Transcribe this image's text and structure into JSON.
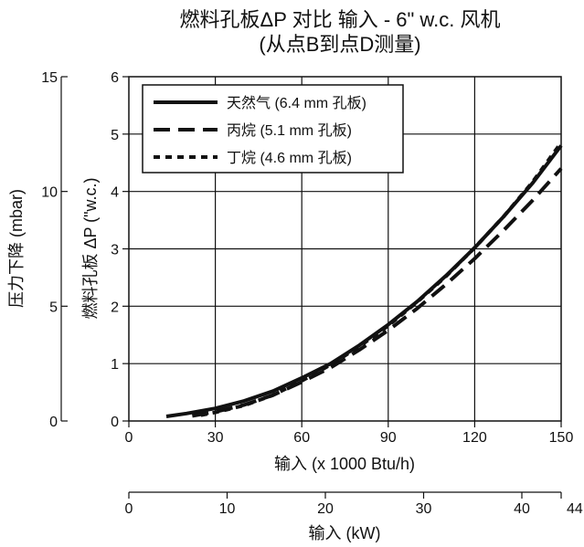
{
  "chart_data": {
    "type": "line",
    "title": [
      "燃料孔板ΔP 对比 输入 - 6\" w.c. 风机",
      "(从点B到点D测量)"
    ],
    "xlabel_primary": "输入 (x 1000 Btu/h)",
    "xlabel_secondary": "输入 (kW)",
    "ylabel_primary": "燃料孔板 ΔP (\"w.c.)",
    "ylabel_secondary": "压力下降 (mbar)",
    "xlim_primary": [
      0,
      150
    ],
    "ylim_primary": [
      0,
      6
    ],
    "xticks_primary": [
      "0",
      "30",
      "60",
      "90",
      "120",
      "150"
    ],
    "yticks_primary": [
      "0",
      "1",
      "2",
      "3",
      "4",
      "5",
      "6"
    ],
    "xlim_secondary": [
      0,
      44
    ],
    "xticks_secondary": [
      "0",
      "10",
      "20",
      "30",
      "40",
      "44"
    ],
    "ylim_secondary": [
      0,
      15
    ],
    "yticks_secondary": [
      "0",
      "5",
      "10",
      "15"
    ],
    "grid": true,
    "legend_position": "top-left",
    "series": [
      {
        "name": "天然气 (6.4 mm 孔板)",
        "dash": "solid",
        "x": [
          13,
          20,
          30,
          40,
          50,
          60,
          70,
          80,
          90,
          100,
          110,
          120,
          130,
          140,
          150
        ],
        "y": [
          0.08,
          0.13,
          0.22,
          0.35,
          0.52,
          0.75,
          1.0,
          1.32,
          1.68,
          2.08,
          2.53,
          3.02,
          3.56,
          4.14,
          4.8
        ]
      },
      {
        "name": "丙烷 (5.1 mm 孔板)",
        "dash": "long-dash",
        "x": [
          22,
          30,
          40,
          50,
          60,
          70,
          80,
          90,
          100,
          110,
          120,
          130,
          140,
          150
        ],
        "y": [
          0.09,
          0.16,
          0.28,
          0.45,
          0.68,
          0.93,
          1.24,
          1.58,
          1.96,
          2.38,
          2.83,
          3.32,
          3.84,
          4.4
        ]
      },
      {
        "name": "丁烷 (4.6 mm 孔板)",
        "dash": "short-dash",
        "x": [
          25,
          30,
          40,
          50,
          60,
          70,
          80,
          90,
          100,
          110,
          120,
          130,
          140,
          150
        ],
        "y": [
          0.1,
          0.15,
          0.27,
          0.45,
          0.7,
          0.98,
          1.3,
          1.66,
          2.07,
          2.52,
          3.02,
          3.56,
          4.16,
          4.85
        ]
      }
    ]
  }
}
